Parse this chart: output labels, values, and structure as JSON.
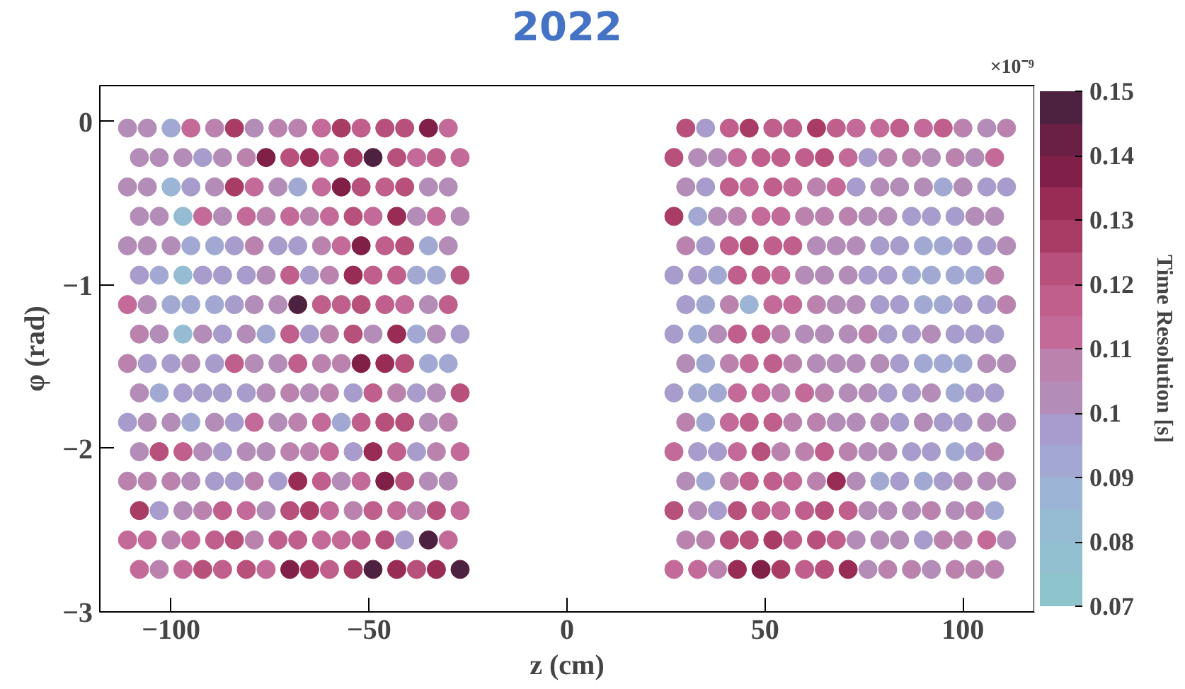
{
  "chart_data": {
    "type": "scatter",
    "title": "2022",
    "xlabel": "z (cm)",
    "ylabel": "φ (rad)",
    "clabel": "Time Resolution [s]",
    "annotations": [
      "×10⁻⁹"
    ],
    "xlim": [
      -118,
      118
    ],
    "ylim": [
      -3,
      0.22
    ],
    "xticks": [
      {
        "value": -100,
        "label": "−100"
      },
      {
        "value": -50,
        "label": "−50"
      },
      0,
      50,
      100
    ],
    "yticks": [
      {
        "value": -3,
        "label": "−3"
      },
      {
        "value": -2,
        "label": "−2"
      },
      {
        "value": -1,
        "label": "−1"
      },
      0
    ],
    "clim": [
      0.07,
      0.15
    ],
    "cticks": [
      0.07,
      0.08,
      0.09,
      0.1,
      0.11,
      0.12,
      0.13,
      0.14,
      0.15
    ],
    "grid": false,
    "marker": "circle",
    "series": [
      {
        "x": [
          -111,
          -106,
          -100,
          -95,
          -89,
          -84,
          -79,
          -73,
          -68,
          -62,
          -57,
          -52,
          -46,
          -41,
          -35,
          -30,
          30,
          35,
          41,
          46,
          52,
          57,
          63,
          68,
          73,
          79,
          84,
          90,
          95,
          100,
          106,
          111
        ],
        "values": [
          -0.04,
          -0.04,
          -0.04,
          -0.04,
          -0.04,
          -0.04,
          -0.04,
          -0.04,
          -0.04,
          -0.04,
          -0.04,
          -0.04,
          -0.04,
          -0.04,
          -0.04,
          -0.04,
          -0.04,
          -0.04,
          -0.04,
          -0.04,
          -0.04,
          -0.04,
          -0.04,
          -0.04,
          -0.04,
          -0.04,
          -0.04,
          -0.04,
          -0.04,
          -0.04,
          -0.04,
          -0.04
        ],
        "cvalues": [
          0.1,
          0.1,
          0.09,
          0.11,
          0.105,
          0.125,
          0.1,
          0.105,
          0.105,
          0.11,
          0.125,
          0.115,
          0.12,
          0.12,
          0.135,
          0.11,
          0.12,
          0.095,
          0.115,
          0.125,
          0.115,
          0.115,
          0.125,
          0.115,
          0.11,
          0.11,
          0.115,
          0.11,
          0.115,
          0.105,
          0.1,
          0.105
        ],
        "colors": [
          "#b48cb8",
          "#b48cb8",
          "#a2a8d2",
          "#c46a98",
          "#bc82ae",
          "#a83c64",
          "#b48cb8",
          "#bc82ae",
          "#bc82ae",
          "#c46a98",
          "#a83c64",
          "#c05e8c",
          "#b8507c",
          "#b8507c",
          "#802048",
          "#c46a98",
          "#b8507c",
          "#a89ccc",
          "#c05e8c",
          "#a83c64",
          "#c05e8c",
          "#c05e8c",
          "#a83c64",
          "#c05e8c",
          "#c46a98",
          "#c46a98",
          "#c05e8c",
          "#c46a98",
          "#c05e8c",
          "#bc82ae",
          "#b48cb8",
          "#bc82ae"
        ]
      },
      {
        "x": [
          -108,
          -103,
          -97,
          -92,
          -87,
          -81,
          -76,
          -70,
          -65,
          -60,
          -54,
          -49,
          -43,
          -38,
          -33,
          -27,
          27,
          33,
          38,
          43,
          49,
          54,
          60,
          65,
          71,
          76,
          81,
          87,
          92,
          98,
          103,
          108
        ],
        "values": [
          -0.22,
          -0.22,
          -0.22,
          -0.22,
          -0.22,
          -0.22,
          -0.22,
          -0.22,
          -0.22,
          -0.22,
          -0.22,
          -0.22,
          -0.22,
          -0.22,
          -0.22,
          -0.22,
          -0.22,
          -0.22,
          -0.22,
          -0.22,
          -0.22,
          -0.22,
          -0.22,
          -0.22,
          -0.22,
          -0.22,
          -0.22,
          -0.22,
          -0.22,
          -0.22,
          -0.22,
          -0.22
        ],
        "cvalues": [
          0.1,
          0.1,
          0.1,
          0.095,
          0.1,
          0.105,
          0.135,
          0.12,
          0.13,
          0.11,
          0.125,
          0.145,
          0.12,
          0.11,
          0.115,
          0.11,
          0.12,
          0.1,
          0.1,
          0.11,
          0.115,
          0.115,
          0.115,
          0.12,
          0.11,
          0.095,
          0.105,
          0.105,
          0.1,
          0.105,
          0.1,
          0.11
        ],
        "colors": [
          "#b48cb8",
          "#b48cb8",
          "#b48cb8",
          "#a89ccc",
          "#b48cb8",
          "#bc82ae",
          "#802048",
          "#b8507c",
          "#982c54",
          "#c46a98",
          "#a83c64",
          "#4c2240",
          "#b8507c",
          "#c46a98",
          "#c05e8c",
          "#c46a98",
          "#b8507c",
          "#b48cb8",
          "#b48cb8",
          "#c46a98",
          "#c05e8c",
          "#c05e8c",
          "#c05e8c",
          "#b8507c",
          "#c46a98",
          "#a89ccc",
          "#bc82ae",
          "#bc82ae",
          "#b48cb8",
          "#bc82ae",
          "#b48cb8",
          "#c46a98"
        ]
      },
      {
        "x": [
          -111,
          -106,
          -100,
          -95,
          -89,
          -84,
          -79,
          -73,
          -68,
          -62,
          -57,
          -52,
          -46,
          -41,
          -35,
          -30,
          30,
          35,
          41,
          46,
          52,
          57,
          63,
          68,
          73,
          79,
          84,
          90,
          95,
          100,
          106,
          111
        ],
        "values": [
          -0.4,
          -0.4,
          -0.4,
          -0.4,
          -0.4,
          -0.4,
          -0.4,
          -0.4,
          -0.4,
          -0.4,
          -0.4,
          -0.4,
          -0.4,
          -0.4,
          -0.4,
          -0.4,
          -0.4,
          -0.4,
          -0.4,
          -0.4,
          -0.4,
          -0.4,
          -0.4,
          -0.4,
          -0.4,
          -0.4,
          -0.4,
          -0.4,
          -0.4,
          -0.4,
          -0.4,
          -0.4
        ],
        "cvalues": [
          0.1,
          0.1,
          0.085,
          0.095,
          0.1,
          0.125,
          0.11,
          0.1,
          0.09,
          0.11,
          0.135,
          0.12,
          0.115,
          0.12,
          0.1,
          0.1,
          0.1,
          0.095,
          0.115,
          0.11,
          0.115,
          0.11,
          0.105,
          0.11,
          0.095,
          0.1,
          0.1,
          0.1,
          0.09,
          0.1,
          0.095,
          0.095
        ],
        "colors": [
          "#b48cb8",
          "#b48cb8",
          "#9cb4d6",
          "#a89ccc",
          "#b48cb8",
          "#a83c64",
          "#c46a98",
          "#b48cb8",
          "#a2a8d2",
          "#c46a98",
          "#802048",
          "#b8507c",
          "#c05e8c",
          "#b8507c",
          "#b48cb8",
          "#b48cb8",
          "#b48cb8",
          "#a89ccc",
          "#c05e8c",
          "#c46a98",
          "#c05e8c",
          "#c46a98",
          "#bc82ae",
          "#c46a98",
          "#a89ccc",
          "#b48cb8",
          "#b48cb8",
          "#b48cb8",
          "#a2a8d2",
          "#b48cb8",
          "#a89ccc",
          "#a89ccc"
        ]
      },
      {
        "x": [
          -108,
          -103,
          -97,
          -92,
          -87,
          -81,
          -76,
          -70,
          -65,
          -60,
          -54,
          -49,
          -43,
          -38,
          -33,
          -27,
          27,
          33,
          38,
          43,
          49,
          54,
          60,
          65,
          71,
          76,
          81,
          87,
          92,
          98,
          103,
          108
        ],
        "values": [
          -0.58,
          -0.58,
          -0.58,
          -0.58,
          -0.58,
          -0.58,
          -0.58,
          -0.58,
          -0.58,
          -0.58,
          -0.58,
          -0.58,
          -0.58,
          -0.58,
          -0.58,
          -0.58,
          -0.58,
          -0.58,
          -0.58,
          -0.58,
          -0.58,
          -0.58,
          -0.58,
          -0.58,
          -0.58,
          -0.58,
          -0.58,
          -0.58,
          -0.58,
          -0.58,
          -0.58,
          -0.58
        ],
        "cvalues": [
          0.1,
          0.1,
          0.08,
          0.11,
          0.1,
          0.11,
          0.105,
          0.11,
          0.105,
          0.11,
          0.12,
          0.11,
          0.13,
          0.1,
          0.11,
          0.1,
          0.125,
          0.09,
          0.1,
          0.105,
          0.11,
          0.11,
          0.105,
          0.105,
          0.105,
          0.1,
          0.1,
          0.095,
          0.095,
          0.095,
          0.1,
          0.1
        ],
        "colors": [
          "#b48cb8",
          "#b48cb8",
          "#96bcd4",
          "#c46a98",
          "#b48cb8",
          "#c46a98",
          "#bc82ae",
          "#c46a98",
          "#bc82ae",
          "#c46a98",
          "#b8507c",
          "#c46a98",
          "#982c54",
          "#b48cb8",
          "#c46a98",
          "#b48cb8",
          "#a83c64",
          "#a2a8d2",
          "#b48cb8",
          "#bc82ae",
          "#c46a98",
          "#c46a98",
          "#bc82ae",
          "#bc82ae",
          "#bc82ae",
          "#b48cb8",
          "#b48cb8",
          "#a89ccc",
          "#a89ccc",
          "#a89ccc",
          "#b48cb8",
          "#b48cb8"
        ]
      },
      {
        "x": [
          -111,
          -106,
          -100,
          -95,
          -89,
          -84,
          -79,
          -73,
          -68,
          -62,
          -57,
          -52,
          -46,
          -41,
          -35,
          -30,
          30,
          35,
          41,
          46,
          52,
          57,
          63,
          68,
          73,
          79,
          84,
          90,
          95,
          100,
          106,
          111
        ],
        "values": [
          -0.76,
          -0.76,
          -0.76,
          -0.76,
          -0.76,
          -0.76,
          -0.76,
          -0.76,
          -0.76,
          -0.76,
          -0.76,
          -0.76,
          -0.76,
          -0.76,
          -0.76,
          -0.76,
          -0.76,
          -0.76,
          -0.76,
          -0.76,
          -0.76,
          -0.76,
          -0.76,
          -0.76,
          -0.76,
          -0.76,
          -0.76,
          -0.76,
          -0.76,
          -0.76,
          -0.76,
          -0.76
        ],
        "cvalues": [
          0.1,
          0.1,
          0.1,
          0.09,
          0.09,
          0.095,
          0.105,
          0.095,
          0.095,
          0.105,
          0.11,
          0.135,
          0.115,
          0.12,
          0.09,
          0.1,
          0.105,
          0.095,
          0.115,
          0.12,
          0.115,
          0.115,
          0.1,
          0.1,
          0.1,
          0.095,
          0.095,
          0.09,
          0.09,
          0.095,
          0.095,
          0.1
        ],
        "colors": [
          "#b48cb8",
          "#b48cb8",
          "#b48cb8",
          "#a2a8d2",
          "#a2a8d2",
          "#a89ccc",
          "#bc82ae",
          "#a89ccc",
          "#a89ccc",
          "#bc82ae",
          "#c46a98",
          "#802048",
          "#c05e8c",
          "#b8507c",
          "#a2a8d2",
          "#b48cb8",
          "#bc82ae",
          "#a89ccc",
          "#c05e8c",
          "#b8507c",
          "#c05e8c",
          "#c05e8c",
          "#b48cb8",
          "#b48cb8",
          "#b48cb8",
          "#a89ccc",
          "#a89ccc",
          "#a2a8d2",
          "#a2a8d2",
          "#a89ccc",
          "#a89ccc",
          "#b48cb8"
        ]
      },
      {
        "x": [
          -108,
          -103,
          -97,
          -92,
          -87,
          -81,
          -76,
          -70,
          -65,
          -60,
          -54,
          -49,
          -43,
          -38,
          -33,
          -27,
          27,
          33,
          38,
          43,
          49,
          54,
          60,
          65,
          71,
          76,
          81,
          87,
          92,
          98,
          103,
          108
        ],
        "values": [
          -0.94,
          -0.94,
          -0.94,
          -0.94,
          -0.94,
          -0.94,
          -0.94,
          -0.94,
          -0.94,
          -0.94,
          -0.94,
          -0.94,
          -0.94,
          -0.94,
          -0.94,
          -0.94,
          -0.94,
          -0.94,
          -0.94,
          -0.94,
          -0.94,
          -0.94,
          -0.94,
          -0.94,
          -0.94,
          -0.94,
          -0.94,
          -0.94,
          -0.94,
          -0.94,
          -0.94,
          -0.94
        ],
        "cvalues": [
          0.095,
          0.09,
          0.08,
          0.095,
          0.095,
          0.095,
          0.1,
          0.115,
          0.095,
          0.105,
          0.13,
          0.115,
          0.115,
          0.09,
          0.09,
          0.12,
          0.095,
          0.095,
          0.09,
          0.115,
          0.115,
          0.11,
          0.1,
          0.1,
          0.1,
          0.095,
          0.095,
          0.09,
          0.09,
          0.09,
          0.09,
          0.105
        ],
        "colors": [
          "#a89ccc",
          "#a2a8d2",
          "#96bcd4",
          "#a89ccc",
          "#a89ccc",
          "#a89ccc",
          "#b48cb8",
          "#c05e8c",
          "#a89ccc",
          "#bc82ae",
          "#982c54",
          "#c05e8c",
          "#c05e8c",
          "#a2a8d2",
          "#a2a8d2",
          "#b8507c",
          "#a89ccc",
          "#a89ccc",
          "#a2a8d2",
          "#c05e8c",
          "#c05e8c",
          "#c46a98",
          "#b48cb8",
          "#b48cb8",
          "#b48cb8",
          "#a89ccc",
          "#a89ccc",
          "#a2a8d2",
          "#a2a8d2",
          "#a2a8d2",
          "#a2a8d2",
          "#bc82ae"
        ]
      },
      {
        "x": [
          -111,
          -106,
          -100,
          -95,
          -89,
          -84,
          -79,
          -73,
          -68,
          -62,
          -57,
          -52,
          -46,
          -41,
          -35,
          -30,
          30,
          35,
          41,
          46,
          52,
          57,
          63,
          68,
          73,
          79,
          84,
          90,
          95,
          100,
          106,
          111
        ],
        "values": [
          -1.12,
          -1.12,
          -1.12,
          -1.12,
          -1.12,
          -1.12,
          -1.12,
          -1.12,
          -1.12,
          -1.12,
          -1.12,
          -1.12,
          -1.12,
          -1.12,
          -1.12,
          -1.12,
          -1.12,
          -1.12,
          -1.12,
          -1.12,
          -1.12,
          -1.12,
          -1.12,
          -1.12,
          -1.12,
          -1.12,
          -1.12,
          -1.12,
          -1.12,
          -1.12,
          -1.12,
          -1.12
        ],
        "cvalues": [
          0.11,
          0.1,
          0.09,
          0.09,
          0.09,
          0.095,
          0.1,
          0.1,
          0.145,
          0.115,
          0.115,
          0.12,
          0.115,
          0.11,
          0.1,
          0.115,
          0.095,
          0.09,
          0.105,
          0.085,
          0.11,
          0.11,
          0.105,
          0.1,
          0.1,
          0.095,
          0.095,
          0.09,
          0.09,
          0.095,
          0.095,
          0.105
        ],
        "colors": [
          "#c46a98",
          "#b48cb8",
          "#a2a8d2",
          "#a2a8d2",
          "#a2a8d2",
          "#a89ccc",
          "#b48cb8",
          "#b48cb8",
          "#4c2240",
          "#c05e8c",
          "#c05e8c",
          "#b8507c",
          "#c05e8c",
          "#c46a98",
          "#b48cb8",
          "#c05e8c",
          "#a89ccc",
          "#a2a8d2",
          "#bc82ae",
          "#9cb4d6",
          "#c46a98",
          "#c46a98",
          "#bc82ae",
          "#b48cb8",
          "#b48cb8",
          "#a89ccc",
          "#a89ccc",
          "#a2a8d2",
          "#a2a8d2",
          "#a89ccc",
          "#a89ccc",
          "#bc82ae"
        ]
      },
      {
        "x": [
          -108,
          -103,
          -97,
          -92,
          -87,
          -81,
          -76,
          -70,
          -65,
          -60,
          -54,
          -49,
          -43,
          -38,
          -33,
          -27,
          27,
          33,
          38,
          43,
          49,
          54,
          60,
          65,
          71,
          76,
          81,
          87,
          92,
          98,
          103,
          108
        ],
        "values": [
          -1.3,
          -1.3,
          -1.3,
          -1.3,
          -1.3,
          -1.3,
          -1.3,
          -1.3,
          -1.3,
          -1.3,
          -1.3,
          -1.3,
          -1.3,
          -1.3,
          -1.3,
          -1.3,
          -1.3,
          -1.3,
          -1.3,
          -1.3,
          -1.3,
          -1.3,
          -1.3,
          -1.3,
          -1.3,
          -1.3,
          -1.3,
          -1.3,
          -1.3,
          -1.3,
          -1.3,
          -1.3
        ],
        "cvalues": [
          0.105,
          0.1,
          0.08,
          0.1,
          0.095,
          0.1,
          0.09,
          0.115,
          0.095,
          0.105,
          0.12,
          0.1,
          0.13,
          0.09,
          0.1,
          0.095,
          0.095,
          0.09,
          0.1,
          0.115,
          0.115,
          0.105,
          0.1,
          0.1,
          0.1,
          0.105,
          0.095,
          0.095,
          0.1,
          0.095,
          0.095,
          0.095
        ],
        "colors": [
          "#bc82ae",
          "#b48cb8",
          "#96bcd4",
          "#b48cb8",
          "#a89ccc",
          "#b48cb8",
          "#a2a8d2",
          "#c05e8c",
          "#a89ccc",
          "#bc82ae",
          "#b8507c",
          "#b48cb8",
          "#982c54",
          "#a2a8d2",
          "#b48cb8",
          "#a89ccc",
          "#a89ccc",
          "#a2a8d2",
          "#b48cb8",
          "#c05e8c",
          "#c05e8c",
          "#bc82ae",
          "#b48cb8",
          "#b48cb8",
          "#b48cb8",
          "#bc82ae",
          "#a89ccc",
          "#a89ccc",
          "#b48cb8",
          "#a89ccc",
          "#a89ccc",
          "#a89ccc"
        ]
      },
      {
        "x": [
          -111,
          -106,
          -100,
          -95,
          -89,
          -84,
          -79,
          -73,
          -68,
          -62,
          -57,
          -52,
          -46,
          -41,
          -35,
          -30,
          30,
          35,
          41,
          46,
          52,
          57,
          63,
          68,
          73,
          79,
          84,
          90,
          95,
          100,
          106,
          111
        ],
        "values": [
          -1.48,
          -1.48,
          -1.48,
          -1.48,
          -1.48,
          -1.48,
          -1.48,
          -1.48,
          -1.48,
          -1.48,
          -1.48,
          -1.48,
          -1.48,
          -1.48,
          -1.48,
          -1.48,
          -1.48,
          -1.48,
          -1.48,
          -1.48,
          -1.48,
          -1.48,
          -1.48,
          -1.48,
          -1.48,
          -1.48,
          -1.48,
          -1.48,
          -1.48,
          -1.48,
          -1.48,
          -1.48
        ],
        "cvalues": [
          0.105,
          0.095,
          0.095,
          0.1,
          0.095,
          0.115,
          0.1,
          0.1,
          0.115,
          0.105,
          0.105,
          0.135,
          0.13,
          0.12,
          0.09,
          0.09,
          0.1,
          0.09,
          0.105,
          0.11,
          0.115,
          0.105,
          0.1,
          0.1,
          0.1,
          0.1,
          0.095,
          0.09,
          0.09,
          0.09,
          0.1,
          0.1
        ],
        "colors": [
          "#bc82ae",
          "#a89ccc",
          "#a89ccc",
          "#b48cb8",
          "#a89ccc",
          "#c05e8c",
          "#b48cb8",
          "#b48cb8",
          "#c05e8c",
          "#bc82ae",
          "#bc82ae",
          "#802048",
          "#982c54",
          "#b8507c",
          "#a2a8d2",
          "#a2a8d2",
          "#b48cb8",
          "#a2a8d2",
          "#bc82ae",
          "#c46a98",
          "#c05e8c",
          "#bc82ae",
          "#b48cb8",
          "#b48cb8",
          "#b48cb8",
          "#b48cb8",
          "#a89ccc",
          "#a2a8d2",
          "#a2a8d2",
          "#a2a8d2",
          "#b48cb8",
          "#b48cb8"
        ]
      },
      {
        "x": [
          -108,
          -103,
          -97,
          -92,
          -87,
          -81,
          -76,
          -70,
          -65,
          -60,
          -54,
          -49,
          -43,
          -38,
          -33,
          -27,
          27,
          33,
          38,
          43,
          49,
          54,
          60,
          65,
          71,
          76,
          81,
          87,
          92,
          98,
          103,
          108
        ],
        "values": [
          -1.66,
          -1.66,
          -1.66,
          -1.66,
          -1.66,
          -1.66,
          -1.66,
          -1.66,
          -1.66,
          -1.66,
          -1.66,
          -1.66,
          -1.66,
          -1.66,
          -1.66,
          -1.66,
          -1.66,
          -1.66,
          -1.66,
          -1.66,
          -1.66,
          -1.66,
          -1.66,
          -1.66,
          -1.66,
          -1.66,
          -1.66,
          -1.66,
          -1.66,
          -1.66,
          -1.66,
          -1.66
        ],
        "cvalues": [
          0.1,
          0.09,
          0.095,
          0.095,
          0.095,
          0.095,
          0.1,
          0.105,
          0.1,
          0.105,
          0.095,
          0.115,
          0.105,
          0.095,
          0.1,
          0.12,
          0.095,
          0.09,
          0.09,
          0.11,
          0.11,
          0.105,
          0.11,
          0.105,
          0.1,
          0.1,
          0.095,
          0.095,
          0.1,
          0.09,
          0.095,
          0.095
        ],
        "colors": [
          "#b48cb8",
          "#a2a8d2",
          "#a89ccc",
          "#a89ccc",
          "#a89ccc",
          "#a89ccc",
          "#b48cb8",
          "#bc82ae",
          "#b48cb8",
          "#bc82ae",
          "#a89ccc",
          "#c05e8c",
          "#bc82ae",
          "#a89ccc",
          "#b48cb8",
          "#b8507c",
          "#a89ccc",
          "#a2a8d2",
          "#a2a8d2",
          "#c46a98",
          "#c46a98",
          "#bc82ae",
          "#c46a98",
          "#bc82ae",
          "#b48cb8",
          "#b48cb8",
          "#a89ccc",
          "#a89ccc",
          "#b48cb8",
          "#a2a8d2",
          "#a89ccc",
          "#a89ccc"
        ]
      },
      {
        "x": [
          -111,
          -106,
          -100,
          -95,
          -89,
          -84,
          -79,
          -73,
          -68,
          -62,
          -57,
          -52,
          -46,
          -41,
          -35,
          -30,
          30,
          35,
          41,
          46,
          52,
          57,
          63,
          68,
          73,
          79,
          84,
          90,
          95,
          100,
          106,
          111
        ],
        "values": [
          -1.84,
          -1.84,
          -1.84,
          -1.84,
          -1.84,
          -1.84,
          -1.84,
          -1.84,
          -1.84,
          -1.84,
          -1.84,
          -1.84,
          -1.84,
          -1.84,
          -1.84,
          -1.84,
          -1.84,
          -1.84,
          -1.84,
          -1.84,
          -1.84,
          -1.84,
          -1.84,
          -1.84,
          -1.84,
          -1.84,
          -1.84,
          -1.84,
          -1.84,
          -1.84,
          -1.84,
          -1.84
        ],
        "cvalues": [
          0.095,
          0.1,
          0.1,
          0.09,
          0.1,
          0.095,
          0.11,
          0.1,
          0.105,
          0.11,
          0.09,
          0.115,
          0.12,
          0.12,
          0.1,
          0.105,
          0.105,
          0.09,
          0.11,
          0.115,
          0.115,
          0.105,
          0.105,
          0.1,
          0.1,
          0.1,
          0.095,
          0.1,
          0.095,
          0.095,
          0.1,
          0.1
        ],
        "colors": [
          "#a89ccc",
          "#b48cb8",
          "#b48cb8",
          "#a2a8d2",
          "#b48cb8",
          "#a89ccc",
          "#c46a98",
          "#b48cb8",
          "#bc82ae",
          "#c46a98",
          "#a2a8d2",
          "#c05e8c",
          "#b8507c",
          "#b8507c",
          "#b48cb8",
          "#bc82ae",
          "#bc82ae",
          "#a2a8d2",
          "#c46a98",
          "#c05e8c",
          "#c05e8c",
          "#bc82ae",
          "#bc82ae",
          "#b48cb8",
          "#b48cb8",
          "#b48cb8",
          "#a89ccc",
          "#b48cb8",
          "#a89ccc",
          "#a89ccc",
          "#b48cb8",
          "#b48cb8"
        ]
      },
      {
        "x": [
          -108,
          -103,
          -97,
          -92,
          -87,
          -81,
          -76,
          -70,
          -65,
          -60,
          -54,
          -49,
          -43,
          -38,
          -33,
          -27,
          27,
          33,
          38,
          43,
          49,
          54,
          60,
          65,
          71,
          76,
          81,
          87,
          92,
          98,
          103,
          108
        ],
        "values": [
          -2.02,
          -2.02,
          -2.02,
          -2.02,
          -2.02,
          -2.02,
          -2.02,
          -2.02,
          -2.02,
          -2.02,
          -2.02,
          -2.02,
          -2.02,
          -2.02,
          -2.02,
          -2.02,
          -2.02,
          -2.02,
          -2.02,
          -2.02,
          -2.02,
          -2.02,
          -2.02,
          -2.02,
          -2.02,
          -2.02,
          -2.02,
          -2.02,
          -2.02,
          -2.02,
          -2.02,
          -2.02
        ],
        "cvalues": [
          0.1,
          0.12,
          0.115,
          0.1,
          0.095,
          0.1,
          0.1,
          0.105,
          0.105,
          0.11,
          0.095,
          0.13,
          0.115,
          0.095,
          0.105,
          0.11,
          0.11,
          0.095,
          0.095,
          0.11,
          0.12,
          0.105,
          0.105,
          0.115,
          0.105,
          0.1,
          0.1,
          0.095,
          0.095,
          0.09,
          0.095,
          0.105
        ],
        "colors": [
          "#b48cb8",
          "#b8507c",
          "#c05e8c",
          "#b48cb8",
          "#a89ccc",
          "#b48cb8",
          "#b48cb8",
          "#bc82ae",
          "#bc82ae",
          "#c46a98",
          "#a89ccc",
          "#982c54",
          "#c05e8c",
          "#a89ccc",
          "#bc82ae",
          "#c46a98",
          "#c46a98",
          "#a89ccc",
          "#a89ccc",
          "#c46a98",
          "#b8507c",
          "#bc82ae",
          "#bc82ae",
          "#c05e8c",
          "#bc82ae",
          "#b48cb8",
          "#b48cb8",
          "#a89ccc",
          "#a89ccc",
          "#a2a8d2",
          "#a89ccc",
          "#bc82ae"
        ]
      },
      {
        "x": [
          -111,
          -106,
          -100,
          -95,
          -89,
          -84,
          -79,
          -73,
          -68,
          -62,
          -57,
          -52,
          -46,
          -41,
          -35,
          -30,
          30,
          35,
          41,
          46,
          52,
          57,
          63,
          68,
          73,
          79,
          84,
          90,
          95,
          100,
          106,
          111
        ],
        "values": [
          -2.2,
          -2.2,
          -2.2,
          -2.2,
          -2.2,
          -2.2,
          -2.2,
          -2.2,
          -2.2,
          -2.2,
          -2.2,
          -2.2,
          -2.2,
          -2.2,
          -2.2,
          -2.2,
          -2.2,
          -2.2,
          -2.2,
          -2.2,
          -2.2,
          -2.2,
          -2.2,
          -2.2,
          -2.2,
          -2.2,
          -2.2,
          -2.2,
          -2.2,
          -2.2,
          -2.2,
          -2.2
        ],
        "cvalues": [
          0.105,
          0.105,
          0.105,
          0.1,
          0.095,
          0.095,
          0.105,
          0.095,
          0.13,
          0.115,
          0.1,
          0.11,
          0.135,
          0.12,
          0.1,
          0.1,
          0.1,
          0.09,
          0.105,
          0.115,
          0.115,
          0.11,
          0.105,
          0.13,
          0.1,
          0.09,
          0.095,
          0.09,
          0.095,
          0.1,
          0.1,
          0.1
        ],
        "colors": [
          "#bc82ae",
          "#bc82ae",
          "#bc82ae",
          "#b48cb8",
          "#a89ccc",
          "#a89ccc",
          "#bc82ae",
          "#a89ccc",
          "#982c54",
          "#c05e8c",
          "#b48cb8",
          "#c46a98",
          "#802048",
          "#b8507c",
          "#b48cb8",
          "#b48cb8",
          "#b48cb8",
          "#a2a8d2",
          "#bc82ae",
          "#c05e8c",
          "#c05e8c",
          "#c46a98",
          "#bc82ae",
          "#982c54",
          "#b48cb8",
          "#a2a8d2",
          "#a89ccc",
          "#a2a8d2",
          "#a89ccc",
          "#b48cb8",
          "#b48cb8",
          "#b48cb8"
        ]
      },
      {
        "x": [
          -108,
          -103,
          -97,
          -92,
          -87,
          -81,
          -76,
          -70,
          -65,
          -60,
          -54,
          -49,
          -43,
          -38,
          -33,
          -27,
          27,
          33,
          38,
          43,
          49,
          54,
          60,
          65,
          71,
          76,
          81,
          87,
          92,
          98,
          103,
          108
        ],
        "values": [
          -2.38,
          -2.38,
          -2.38,
          -2.38,
          -2.38,
          -2.38,
          -2.38,
          -2.38,
          -2.38,
          -2.38,
          -2.38,
          -2.38,
          -2.38,
          -2.38,
          -2.38,
          -2.38,
          -2.38,
          -2.38,
          -2.38,
          -2.38,
          -2.38,
          -2.38,
          -2.38,
          -2.38,
          -2.38,
          -2.38,
          -2.38,
          -2.38,
          -2.38,
          -2.38,
          -2.38,
          -2.38
        ],
        "cvalues": [
          0.125,
          0.095,
          0.1,
          0.105,
          0.115,
          0.11,
          0.1,
          0.12,
          0.125,
          0.11,
          0.105,
          0.115,
          0.11,
          0.105,
          0.12,
          0.11,
          0.12,
          0.1,
          0.095,
          0.12,
          0.115,
          0.11,
          0.115,
          0.12,
          0.115,
          0.1,
          0.1,
          0.1,
          0.105,
          0.1,
          0.105,
          0.09
        ],
        "colors": [
          "#a83c64",
          "#a89ccc",
          "#b48cb8",
          "#bc82ae",
          "#c05e8c",
          "#c46a98",
          "#b48cb8",
          "#b8507c",
          "#a83c64",
          "#c46a98",
          "#bc82ae",
          "#c05e8c",
          "#c46a98",
          "#bc82ae",
          "#b8507c",
          "#c46a98",
          "#b8507c",
          "#b48cb8",
          "#a89ccc",
          "#b8507c",
          "#c05e8c",
          "#c46a98",
          "#c05e8c",
          "#b8507c",
          "#c05e8c",
          "#b48cb8",
          "#b48cb8",
          "#b48cb8",
          "#bc82ae",
          "#b48cb8",
          "#bc82ae",
          "#a2a8d2"
        ]
      },
      {
        "x": [
          -111,
          -106,
          -100,
          -95,
          -89,
          -84,
          -79,
          -73,
          -68,
          -62,
          -57,
          -52,
          -46,
          -41,
          -35,
          -30,
          30,
          35,
          41,
          46,
          52,
          57,
          63,
          68,
          73,
          79,
          84,
          90,
          95,
          100,
          106,
          111
        ],
        "values": [
          -2.56,
          -2.56,
          -2.56,
          -2.56,
          -2.56,
          -2.56,
          -2.56,
          -2.56,
          -2.56,
          -2.56,
          -2.56,
          -2.56,
          -2.56,
          -2.56,
          -2.56,
          -2.56,
          -2.56,
          -2.56,
          -2.56,
          -2.56,
          -2.56,
          -2.56,
          -2.56,
          -2.56,
          -2.56,
          -2.56,
          -2.56,
          -2.56,
          -2.56,
          -2.56,
          -2.56,
          -2.56
        ],
        "cvalues": [
          0.11,
          0.11,
          0.105,
          0.11,
          0.115,
          0.12,
          0.105,
          0.115,
          0.115,
          0.11,
          0.11,
          0.115,
          0.12,
          0.095,
          0.145,
          0.11,
          0.105,
          0.105,
          0.12,
          0.12,
          0.125,
          0.115,
          0.12,
          0.115,
          0.1,
          0.1,
          0.1,
          0.095,
          0.105,
          0.105,
          0.11,
          0.1
        ],
        "colors": [
          "#c46a98",
          "#c46a98",
          "#bc82ae",
          "#c46a98",
          "#c05e8c",
          "#b8507c",
          "#bc82ae",
          "#c05e8c",
          "#c05e8c",
          "#c46a98",
          "#c46a98",
          "#c05e8c",
          "#b8507c",
          "#a89ccc",
          "#4c2240",
          "#c46a98",
          "#bc82ae",
          "#bc82ae",
          "#b8507c",
          "#b8507c",
          "#a83c64",
          "#c05e8c",
          "#b8507c",
          "#c05e8c",
          "#b48cb8",
          "#b48cb8",
          "#b48cb8",
          "#a89ccc",
          "#bc82ae",
          "#bc82ae",
          "#c46a98",
          "#b48cb8"
        ]
      },
      {
        "x": [
          -108,
          -103,
          -97,
          -92,
          -87,
          -81,
          -76,
          -70,
          -65,
          -60,
          -54,
          -49,
          -43,
          -38,
          -33,
          -27,
          27,
          33,
          38,
          43,
          49,
          54,
          60,
          65,
          71,
          76,
          81,
          87,
          92,
          98,
          103,
          108
        ],
        "values": [
          -2.74,
          -2.74,
          -2.74,
          -2.74,
          -2.74,
          -2.74,
          -2.74,
          -2.74,
          -2.74,
          -2.74,
          -2.74,
          -2.74,
          -2.74,
          -2.74,
          -2.74,
          -2.74,
          -2.74,
          -2.74,
          -2.74,
          -2.74,
          -2.74,
          -2.74,
          -2.74,
          -2.74,
          -2.74,
          -2.74,
          -2.74,
          -2.74,
          -2.74,
          -2.74,
          -2.74,
          -2.74
        ],
        "cvalues": [
          0.11,
          0.105,
          0.11,
          0.12,
          0.115,
          0.12,
          0.11,
          0.135,
          0.13,
          0.115,
          0.125,
          0.145,
          0.13,
          0.12,
          0.13,
          0.145,
          0.11,
          0.11,
          0.105,
          0.13,
          0.135,
          0.125,
          0.115,
          0.12,
          0.13,
          0.1,
          0.105,
          0.105,
          0.1,
          0.105,
          0.105,
          0.105
        ],
        "colors": [
          "#c46a98",
          "#bc82ae",
          "#c46a98",
          "#b8507c",
          "#c05e8c",
          "#b8507c",
          "#c46a98",
          "#802048",
          "#982c54",
          "#c05e8c",
          "#a83c64",
          "#4c2240",
          "#982c54",
          "#b8507c",
          "#982c54",
          "#4c2240",
          "#c46a98",
          "#c46a98",
          "#bc82ae",
          "#982c54",
          "#802048",
          "#a83c64",
          "#c05e8c",
          "#b8507c",
          "#982c54",
          "#b48cb8",
          "#bc82ae",
          "#bc82ae",
          "#b48cb8",
          "#bc82ae",
          "#bc82ae",
          "#bc82ae"
        ]
      }
    ]
  }
}
